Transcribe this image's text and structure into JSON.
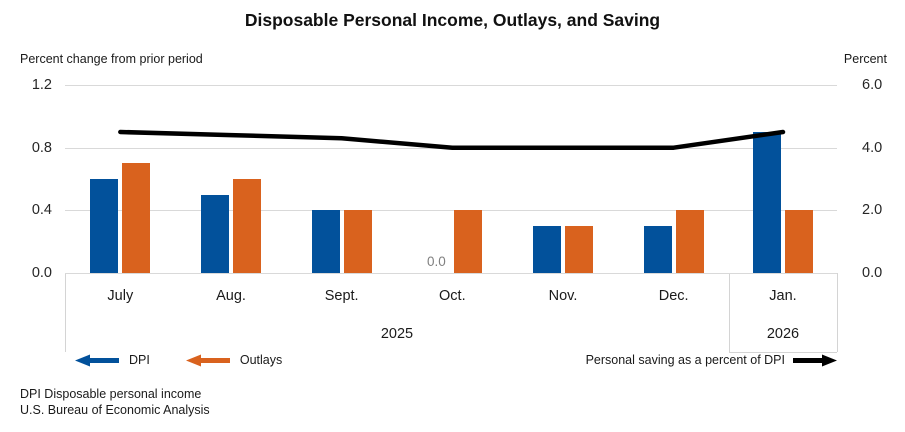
{
  "title": "Disposable Personal Income, Outlays, and Saving",
  "axes": {
    "left": {
      "caption": "Percent change from prior period",
      "ticks": [
        "1.2",
        "0.8",
        "0.4",
        "0.0"
      ]
    },
    "right": {
      "caption": "Percent",
      "ticks": [
        "6.0",
        "4.0",
        "2.0",
        "0.0"
      ]
    }
  },
  "chart_data": {
    "type": "combo-bar-line",
    "title": "Disposable Personal Income, Outlays, and Saving",
    "categories": [
      "July",
      "Aug.",
      "Sept.",
      "Oct.",
      "Nov.",
      "Dec.",
      "Jan."
    ],
    "year_groups": [
      {
        "label": "2025",
        "months": 6
      },
      {
        "label": "2026",
        "months": 1
      }
    ],
    "series": [
      {
        "name": "DPI",
        "type": "bar",
        "axis": "left",
        "color": "#02519B",
        "values": [
          0.6,
          0.5,
          0.4,
          0.0,
          0.3,
          0.3,
          0.9
        ]
      },
      {
        "name": "Outlays",
        "type": "bar",
        "axis": "left",
        "color": "#D9621E",
        "values": [
          0.7,
          0.6,
          0.4,
          0.4,
          0.3,
          0.4,
          0.4
        ]
      },
      {
        "name": "Personal saving as a percent of DPI",
        "type": "line",
        "axis": "right",
        "color": "#000000",
        "values": [
          4.5,
          4.4,
          4.3,
          4.0,
          4.0,
          4.0,
          4.5
        ]
      }
    ],
    "annotations": [
      {
        "category": "Oct.",
        "series": "DPI",
        "label": "0.0"
      }
    ],
    "left_axis_label": "Percent change from prior period",
    "right_axis_label": "Percent",
    "ylim_left": [
      0,
      1.2
    ],
    "ylim_right": [
      0,
      6.0
    ],
    "grid": true,
    "legend_position": "bottom"
  },
  "legend": {
    "dpi": "DPI",
    "outlays": "Outlays",
    "saving": "Personal saving as a percent of DPI"
  },
  "footnotes": {
    "line1": "DPI Disposable personal income",
    "line2": "U.S. Bureau of Economic Analysis"
  },
  "colors": {
    "dpi": "#02519B",
    "outlays": "#D9621E",
    "saving_line": "#000000",
    "grid": "#D9D9D9",
    "zero_label": "#808080"
  }
}
